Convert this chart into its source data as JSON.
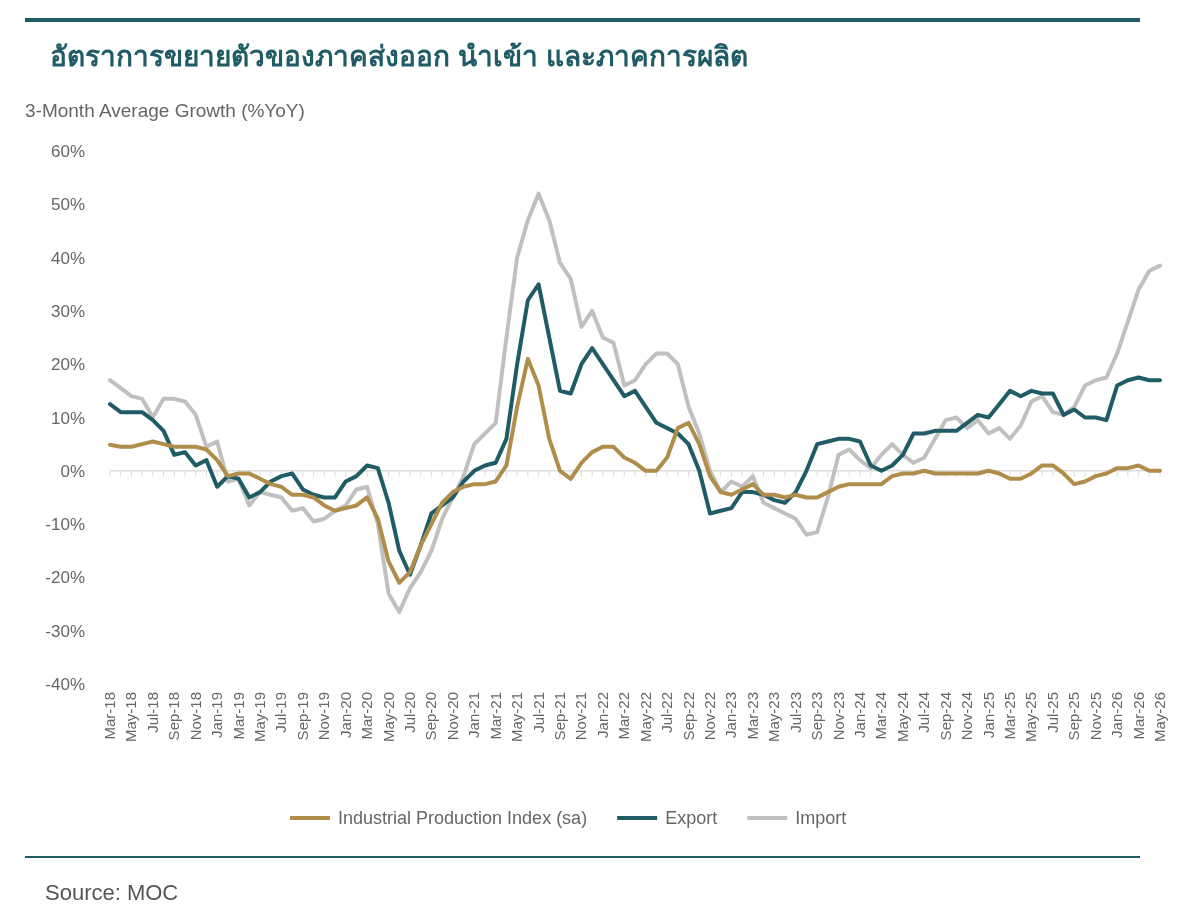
{
  "chart_data": {
    "type": "line",
    "title": "อัตราการขยายตัวของภาคส่งออก นำเข้า และภาคการผลิต",
    "ylabel": "3-Month Average Growth (%YoY)",
    "annotations": [
      "Source: MOC"
    ],
    "categories": [
      "Mar-18",
      null,
      "May-18",
      null,
      "Jul-18",
      null,
      "Sep-18",
      null,
      "Nov-18",
      null,
      "Jan-19",
      null,
      "Mar-19",
      null,
      "May-19",
      null,
      "Jul-19",
      null,
      "Sep-19",
      null,
      "Nov-19",
      null,
      "Jan-20",
      null,
      "Mar-20",
      null,
      "May-20",
      null,
      "Jul-20",
      null,
      "Sep-20",
      null,
      "Nov-20",
      null,
      "Jan-21",
      null,
      "Mar-21",
      null,
      "May-21",
      null,
      "Jul-21",
      null,
      "Sep-21",
      null,
      "Nov-21",
      null,
      "Jan-22",
      null,
      "Mar-22",
      null,
      "May-22",
      null,
      "Jul-22",
      null,
      "Sep-22",
      null,
      "Nov-22",
      null,
      "Jan-23",
      null,
      "Mar-23",
      null,
      "May-23",
      null,
      "Jul-23",
      null,
      "Sep-23",
      null,
      "Nov-23",
      null,
      "Jan-24",
      null,
      "Mar-24",
      null,
      "May-24",
      null,
      "Jul-24",
      null,
      "Sep-24",
      null,
      "Nov-24",
      null,
      "Jan-25",
      null,
      "Mar-25",
      null,
      "May-25",
      null,
      "Jul-25",
      null,
      "Sep-25",
      null,
      "Nov-25",
      null,
      "Jan-26",
      null,
      "Mar-26",
      null,
      "May-26"
    ],
    "series": [
      {
        "name": "Industrial Production Index (sa)",
        "color": "#b08d4a",
        "values": [
          4.9,
          4.5,
          4.5,
          5,
          5.5,
          5,
          4.5,
          4.5,
          4.5,
          4,
          2,
          -1,
          -0.5,
          -0.5,
          -1.5,
          -2.5,
          -3,
          -4.5,
          -4.5,
          -5,
          -6.5,
          -7.5,
          -7,
          -6.5,
          -5,
          -9,
          -17,
          -21,
          -19,
          -14,
          -10,
          -6,
          -4,
          -3,
          -2.5,
          -2.5,
          -2,
          1,
          12,
          21,
          16,
          6,
          0,
          -1.5,
          1.5,
          3.5,
          4.5,
          4.5,
          2.5,
          1.5,
          0,
          0,
          2.5,
          8,
          9,
          5,
          -1,
          -4,
          -4.5,
          -3.5,
          -2.5,
          -4.5,
          -4.5,
          -5,
          -4.5,
          -5,
          -5,
          -4,
          -3,
          -2.5,
          -2.5,
          -2.5,
          -2.5,
          -1,
          -0.5,
          -0.5,
          0,
          -0.5,
          -0.5,
          -0.5,
          -0.5,
          -0.5,
          0,
          -0.5,
          -1.5,
          -1.5,
          -0.5,
          1,
          1,
          -0.5,
          -2.5,
          -2,
          -1,
          -0.5,
          0.5,
          0.5,
          1,
          0,
          0
        ]
      },
      {
        "name": "Export",
        "color": "#1f5c66",
        "values": [
          12.5,
          11,
          11,
          11,
          9.5,
          7.5,
          3,
          3.5,
          1,
          2,
          -3,
          -1,
          -1.5,
          -5,
          -4,
          -2,
          -1,
          -0.5,
          -3.5,
          -4.5,
          -5,
          -5,
          -2,
          -1,
          1,
          0.5,
          -6,
          -15,
          -19.5,
          -14,
          -8,
          -6.5,
          -5,
          -2,
          0,
          1,
          1.5,
          6,
          20,
          32,
          35,
          25,
          15,
          14.5,
          20,
          23,
          20,
          17,
          14,
          15,
          12,
          9,
          8,
          7,
          5,
          0,
          -8,
          -7.5,
          -7,
          -4,
          -4,
          -4.5,
          -5.5,
          -6,
          -4,
          0,
          5,
          5.5,
          6,
          6,
          5.5,
          1,
          0,
          1,
          3,
          7,
          7,
          7.5,
          7.5,
          7.5,
          9,
          10.5,
          10,
          12.5,
          15,
          14,
          15,
          14.5,
          14.5,
          10.5,
          11.5,
          10,
          10,
          9.5,
          16,
          17,
          17.5,
          17,
          17
        ]
      },
      {
        "name": "Import",
        "color": "#c0c0c0",
        "values": [
          17,
          15.5,
          14,
          13.5,
          10,
          13.5,
          13.5,
          13,
          10.5,
          4.5,
          5.5,
          -2,
          -1.5,
          -6.5,
          -4,
          -4.5,
          -5,
          -7.5,
          -7,
          -9.5,
          -9,
          -7.5,
          -6.5,
          -3.5,
          -3,
          -10,
          -23,
          -26.5,
          -22,
          -19,
          -15,
          -9,
          -5,
          -1,
          5,
          7,
          9,
          25,
          40,
          47,
          52,
          47,
          39,
          36,
          27,
          30,
          25,
          24,
          16,
          17,
          20,
          22,
          22,
          20,
          12,
          7,
          0,
          -4,
          -2,
          -3,
          -1,
          -6,
          -7,
          -8,
          -9,
          -12,
          -11.5,
          -5,
          3,
          4,
          2,
          0.5,
          3,
          5,
          3,
          1.5,
          2.5,
          6,
          9.5,
          10,
          8,
          9.5,
          7,
          8,
          6,
          8.5,
          13,
          14,
          11,
          10.5,
          12,
          16,
          17,
          17.5,
          22,
          28,
          34,
          37.5,
          38.5
        ]
      }
    ],
    "ylim": [
      -40,
      60
    ],
    "yticks": [
      {
        "value": -40,
        "label": "-40%"
      },
      {
        "value": -30,
        "label": "-30%"
      },
      {
        "value": -20,
        "label": "-20%"
      },
      {
        "value": -10,
        "label": "-10%"
      },
      {
        "value": 0,
        "label": "0%"
      },
      {
        "value": 10,
        "label": "10%"
      },
      {
        "value": 20,
        "label": "20%"
      },
      {
        "value": 30,
        "label": "30%"
      },
      {
        "value": 40,
        "label": "40%"
      },
      {
        "value": 50,
        "label": "50%"
      },
      {
        "value": 60,
        "label": "60%"
      }
    ],
    "legend": "bottom"
  }
}
